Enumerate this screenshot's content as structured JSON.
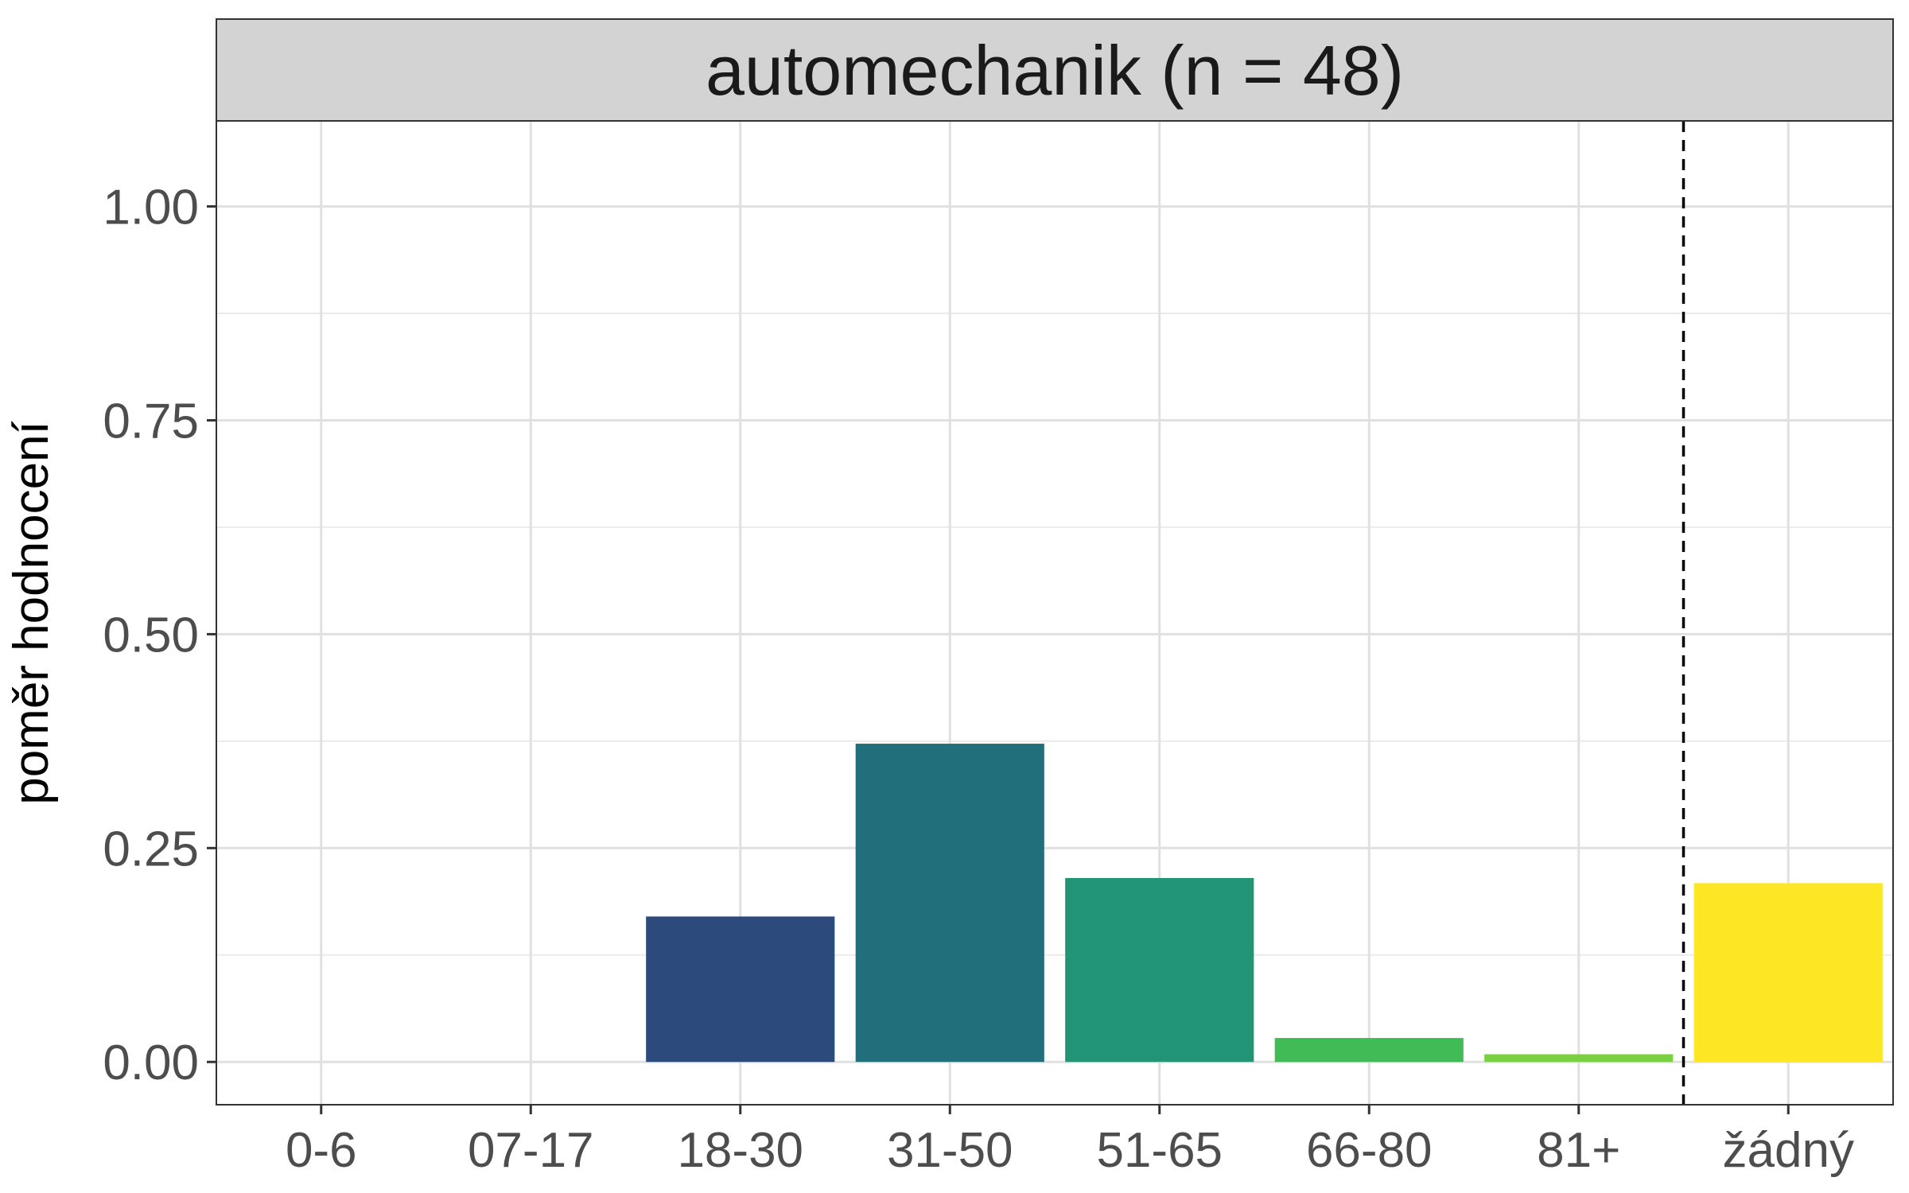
{
  "chart_data": {
    "type": "bar",
    "title": "automechanik (n = 48)",
    "xlabel": "",
    "ylabel": "poměr hodnocení",
    "categories": [
      "0-6",
      "07-17",
      "18-30",
      "31-50",
      "51-65",
      "66-80",
      "81+",
      "žádný"
    ],
    "values": [
      0,
      0,
      0.17,
      0.372,
      0.215,
      0.028,
      0.009,
      0.209
    ],
    "colors": [
      "#440154",
      "#46327e",
      "#2c4a7b",
      "#216f7b",
      "#229576",
      "#40bb56",
      "#7ad043",
      "#fde725"
    ],
    "ylim": [
      -0.05,
      1.1
    ],
    "yticks": [
      0,
      0.25,
      0.5,
      0.75,
      1.0
    ],
    "ytick_labels": [
      "0.00",
      "0.25",
      "0.50",
      "0.75",
      "1.00"
    ],
    "reference_line": {
      "between": [
        "81+",
        "žádný"
      ],
      "style": "dashed",
      "color": "#000000"
    },
    "grid": true,
    "strip_color": "#d3d3d3"
  }
}
